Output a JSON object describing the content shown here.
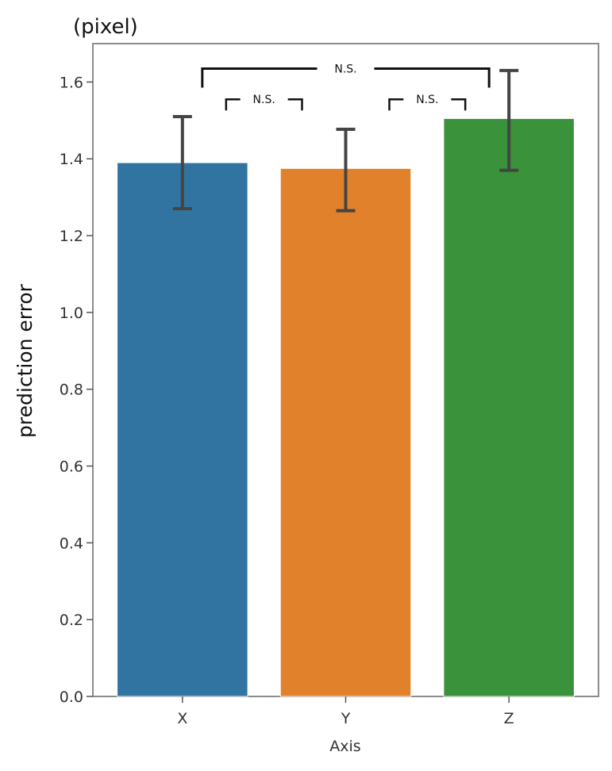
{
  "chart_data": {
    "type": "bar",
    "categories": [
      "X",
      "Y",
      "Z"
    ],
    "values": [
      1.39,
      1.375,
      1.505
    ],
    "error_low": [
      1.27,
      1.265,
      1.37
    ],
    "error_high": [
      1.51,
      1.477,
      1.63
    ],
    "colors": [
      "#3274a1",
      "#e1812c",
      "#3a923a"
    ],
    "title": "",
    "unit_label": "(pixel)",
    "xlabel": "Axis",
    "ylabel": "prediction error",
    "ylim": [
      0,
      1.7
    ],
    "yticks": [
      "0.0",
      "0.2",
      "0.4",
      "0.6",
      "0.8",
      "1.0",
      "1.2",
      "1.4",
      "1.6"
    ],
    "grid": false,
    "significance": [
      {
        "from": "X",
        "to": "Y",
        "label": "N.S.",
        "y": 1.555
      },
      {
        "from": "Y",
        "to": "Z",
        "label": "N.S.",
        "y": 1.555
      },
      {
        "from": "X",
        "to": "Z",
        "label": "N.S.",
        "y": 1.635
      }
    ]
  }
}
